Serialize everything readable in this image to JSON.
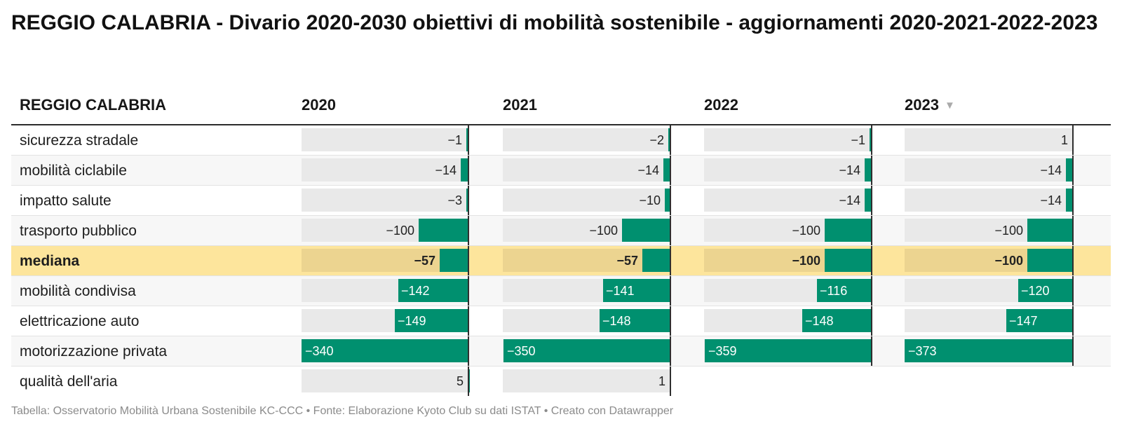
{
  "title": "REGGIO CALABRIA - Divario 2020-2030 obiettivi di mobilità sostenibile - aggiornamenti 2020-2021-2022-2023",
  "footer": "Tabella: Osservatorio Mobilità Urbana Sostenibile KC-CCC • Fonte: Elaborazione Kyoto Club su dati ISTAT • Creato con Datawrapper",
  "colors": {
    "bar": "#00906f",
    "track": "#e9e9e9",
    "highlight_row": "#fde59c",
    "axis": "#2f2f2f"
  },
  "chart_data": {
    "type": "table",
    "header": {
      "label_col": "REGGIO CALABRIA",
      "sort_icon": "sort-descending-icon",
      "sorted_column": "2023"
    },
    "columns": [
      "2020",
      "2021",
      "2022",
      "2023"
    ],
    "rows": [
      {
        "label": "sicurezza stradale",
        "values": [
          -1,
          -2,
          -1,
          1
        ],
        "display": [
          "−1",
          "−2",
          "−1",
          "1"
        ]
      },
      {
        "label": "mobilità ciclabile",
        "values": [
          -14,
          -14,
          -14,
          -14
        ],
        "display": [
          "−14",
          "−14",
          "−14",
          "−14"
        ]
      },
      {
        "label": "impatto salute",
        "values": [
          -3,
          -10,
          -14,
          -14
        ],
        "display": [
          "−3",
          "−10",
          "−14",
          "−14"
        ]
      },
      {
        "label": "trasporto pubblico",
        "values": [
          -100,
          -100,
          -100,
          -100
        ],
        "display": [
          "−100",
          "−100",
          "−100",
          "−100"
        ]
      },
      {
        "label": "mediana",
        "highlight": true,
        "values": [
          -57,
          -57,
          -100,
          -100
        ],
        "display": [
          "−57",
          "−57",
          "−100",
          "−100"
        ]
      },
      {
        "label": "mobilità condivisa",
        "values": [
          -142,
          -141,
          -116,
          -120
        ],
        "display": [
          "−142",
          "−141",
          "−116",
          "−120"
        ]
      },
      {
        "label": "elettricazione auto",
        "values": [
          -149,
          -148,
          -148,
          -147
        ],
        "display": [
          "−149",
          "−148",
          "−148",
          "−147"
        ]
      },
      {
        "label": "motorizzazione privata",
        "values": [
          -340,
          -350,
          -359,
          -373
        ],
        "display": [
          "−340",
          "−350",
          "−359",
          "−373"
        ]
      },
      {
        "label": "qualità dell'aria",
        "values": [
          5,
          1,
          null,
          null
        ],
        "display": [
          "5",
          "1",
          "",
          ""
        ]
      }
    ]
  }
}
